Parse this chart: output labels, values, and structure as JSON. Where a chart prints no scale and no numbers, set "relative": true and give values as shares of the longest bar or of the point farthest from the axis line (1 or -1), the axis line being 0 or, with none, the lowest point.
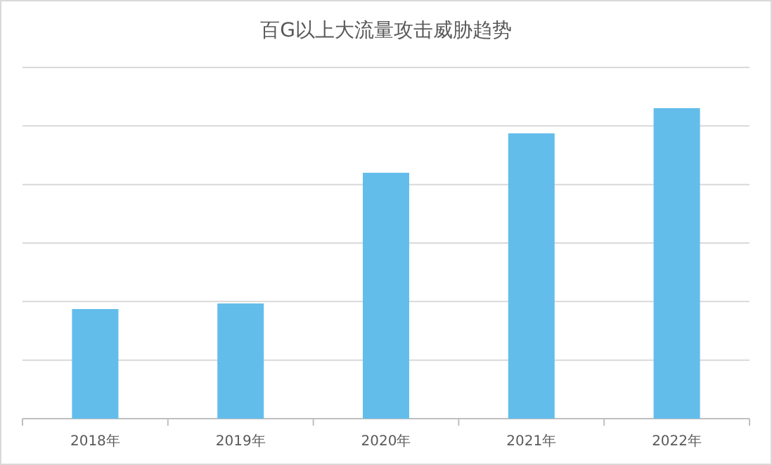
{
  "chart_data": {
    "type": "bar",
    "title": "百G以上大流量攻击威胁趋势",
    "categories": [
      "2018年",
      "2019年",
      "2020年",
      "2021年",
      "2022年"
    ],
    "values": [
      0.353,
      0.371,
      0.792,
      0.919,
      1
    ],
    "color": "#63bdeb",
    "relative": true,
    "grid": "y"
  }
}
